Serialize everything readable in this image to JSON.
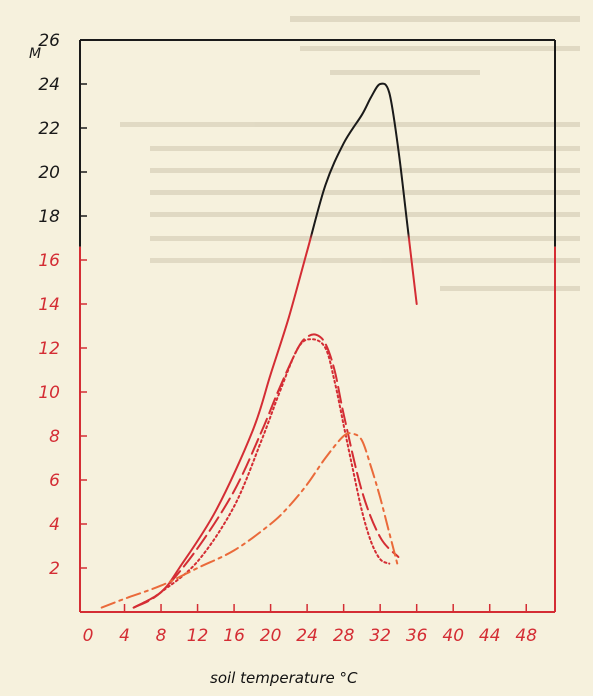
{
  "chart_data": {
    "type": "line",
    "title": "",
    "xlabel": "soil temperature °C",
    "ylabel": "M",
    "xlim": [
      0,
      50
    ],
    "ylim": [
      0,
      26
    ],
    "x_ticks": [
      "0",
      "4",
      "8",
      "12",
      "16",
      "20",
      "24",
      "28",
      "32",
      "36",
      "40",
      "44",
      "48"
    ],
    "y_ticks": [
      "2",
      "4",
      "6",
      "8",
      "10",
      "12",
      "14",
      "16",
      "18",
      "20",
      "22",
      "24",
      "26"
    ],
    "y_tick_values": [
      2,
      4,
      6,
      8,
      10,
      12,
      14,
      16,
      18,
      20,
      22,
      24,
      26
    ],
    "x_tick_values": [
      0,
      4,
      8,
      12,
      16,
      20,
      24,
      28,
      32,
      36,
      40,
      44,
      48
    ],
    "grid": false,
    "colors": {
      "red": "#d42d34",
      "black": "#1a1a1a",
      "orange": "#ea6a3a",
      "axis_red": "#d42d34",
      "axis_black": "#1a1a1a"
    },
    "series": [
      {
        "style": "solid",
        "x": [
          5,
          8,
          10,
          14,
          18,
          20,
          22,
          24,
          26,
          28,
          30,
          31,
          32,
          33,
          34,
          35,
          36
        ],
        "y": [
          0.2,
          0.9,
          2.0,
          4.6,
          8.2,
          10.8,
          13.4,
          16.4,
          19.4,
          21.3,
          22.6,
          23.4,
          24.0,
          23.6,
          21.0,
          17.5,
          14.0
        ]
      },
      {
        "style": "dashed",
        "x": [
          5,
          8,
          12,
          16,
          19,
          21,
          23,
          24,
          25,
          26,
          27,
          28,
          30,
          32,
          34
        ],
        "y": [
          0.2,
          0.9,
          2.9,
          5.5,
          8.2,
          10.2,
          12.0,
          12.5,
          12.6,
          12.2,
          11.0,
          9.0,
          5.5,
          3.4,
          2.5
        ]
      },
      {
        "style": "dotted",
        "x": [
          6,
          8,
          12,
          16,
          19,
          21,
          23,
          24.5,
          26,
          27,
          28,
          29,
          30,
          31,
          32,
          33
        ],
        "y": [
          0.4,
          0.9,
          2.3,
          4.8,
          7.8,
          10.0,
          12.0,
          12.4,
          12.0,
          10.5,
          8.5,
          6.5,
          4.6,
          3.2,
          2.4,
          2.2
        ]
      },
      {
        "style": "dash-dot",
        "x": [
          1.5,
          4,
          8,
          12,
          16,
          20,
          22,
          24,
          26,
          28,
          29,
          30,
          31,
          32,
          33,
          34
        ],
        "y": [
          0.2,
          0.6,
          1.2,
          2.0,
          2.8,
          4.0,
          4.8,
          5.8,
          7.0,
          8.0,
          8.1,
          7.8,
          6.6,
          5.2,
          3.6,
          2.0
        ]
      }
    ]
  }
}
